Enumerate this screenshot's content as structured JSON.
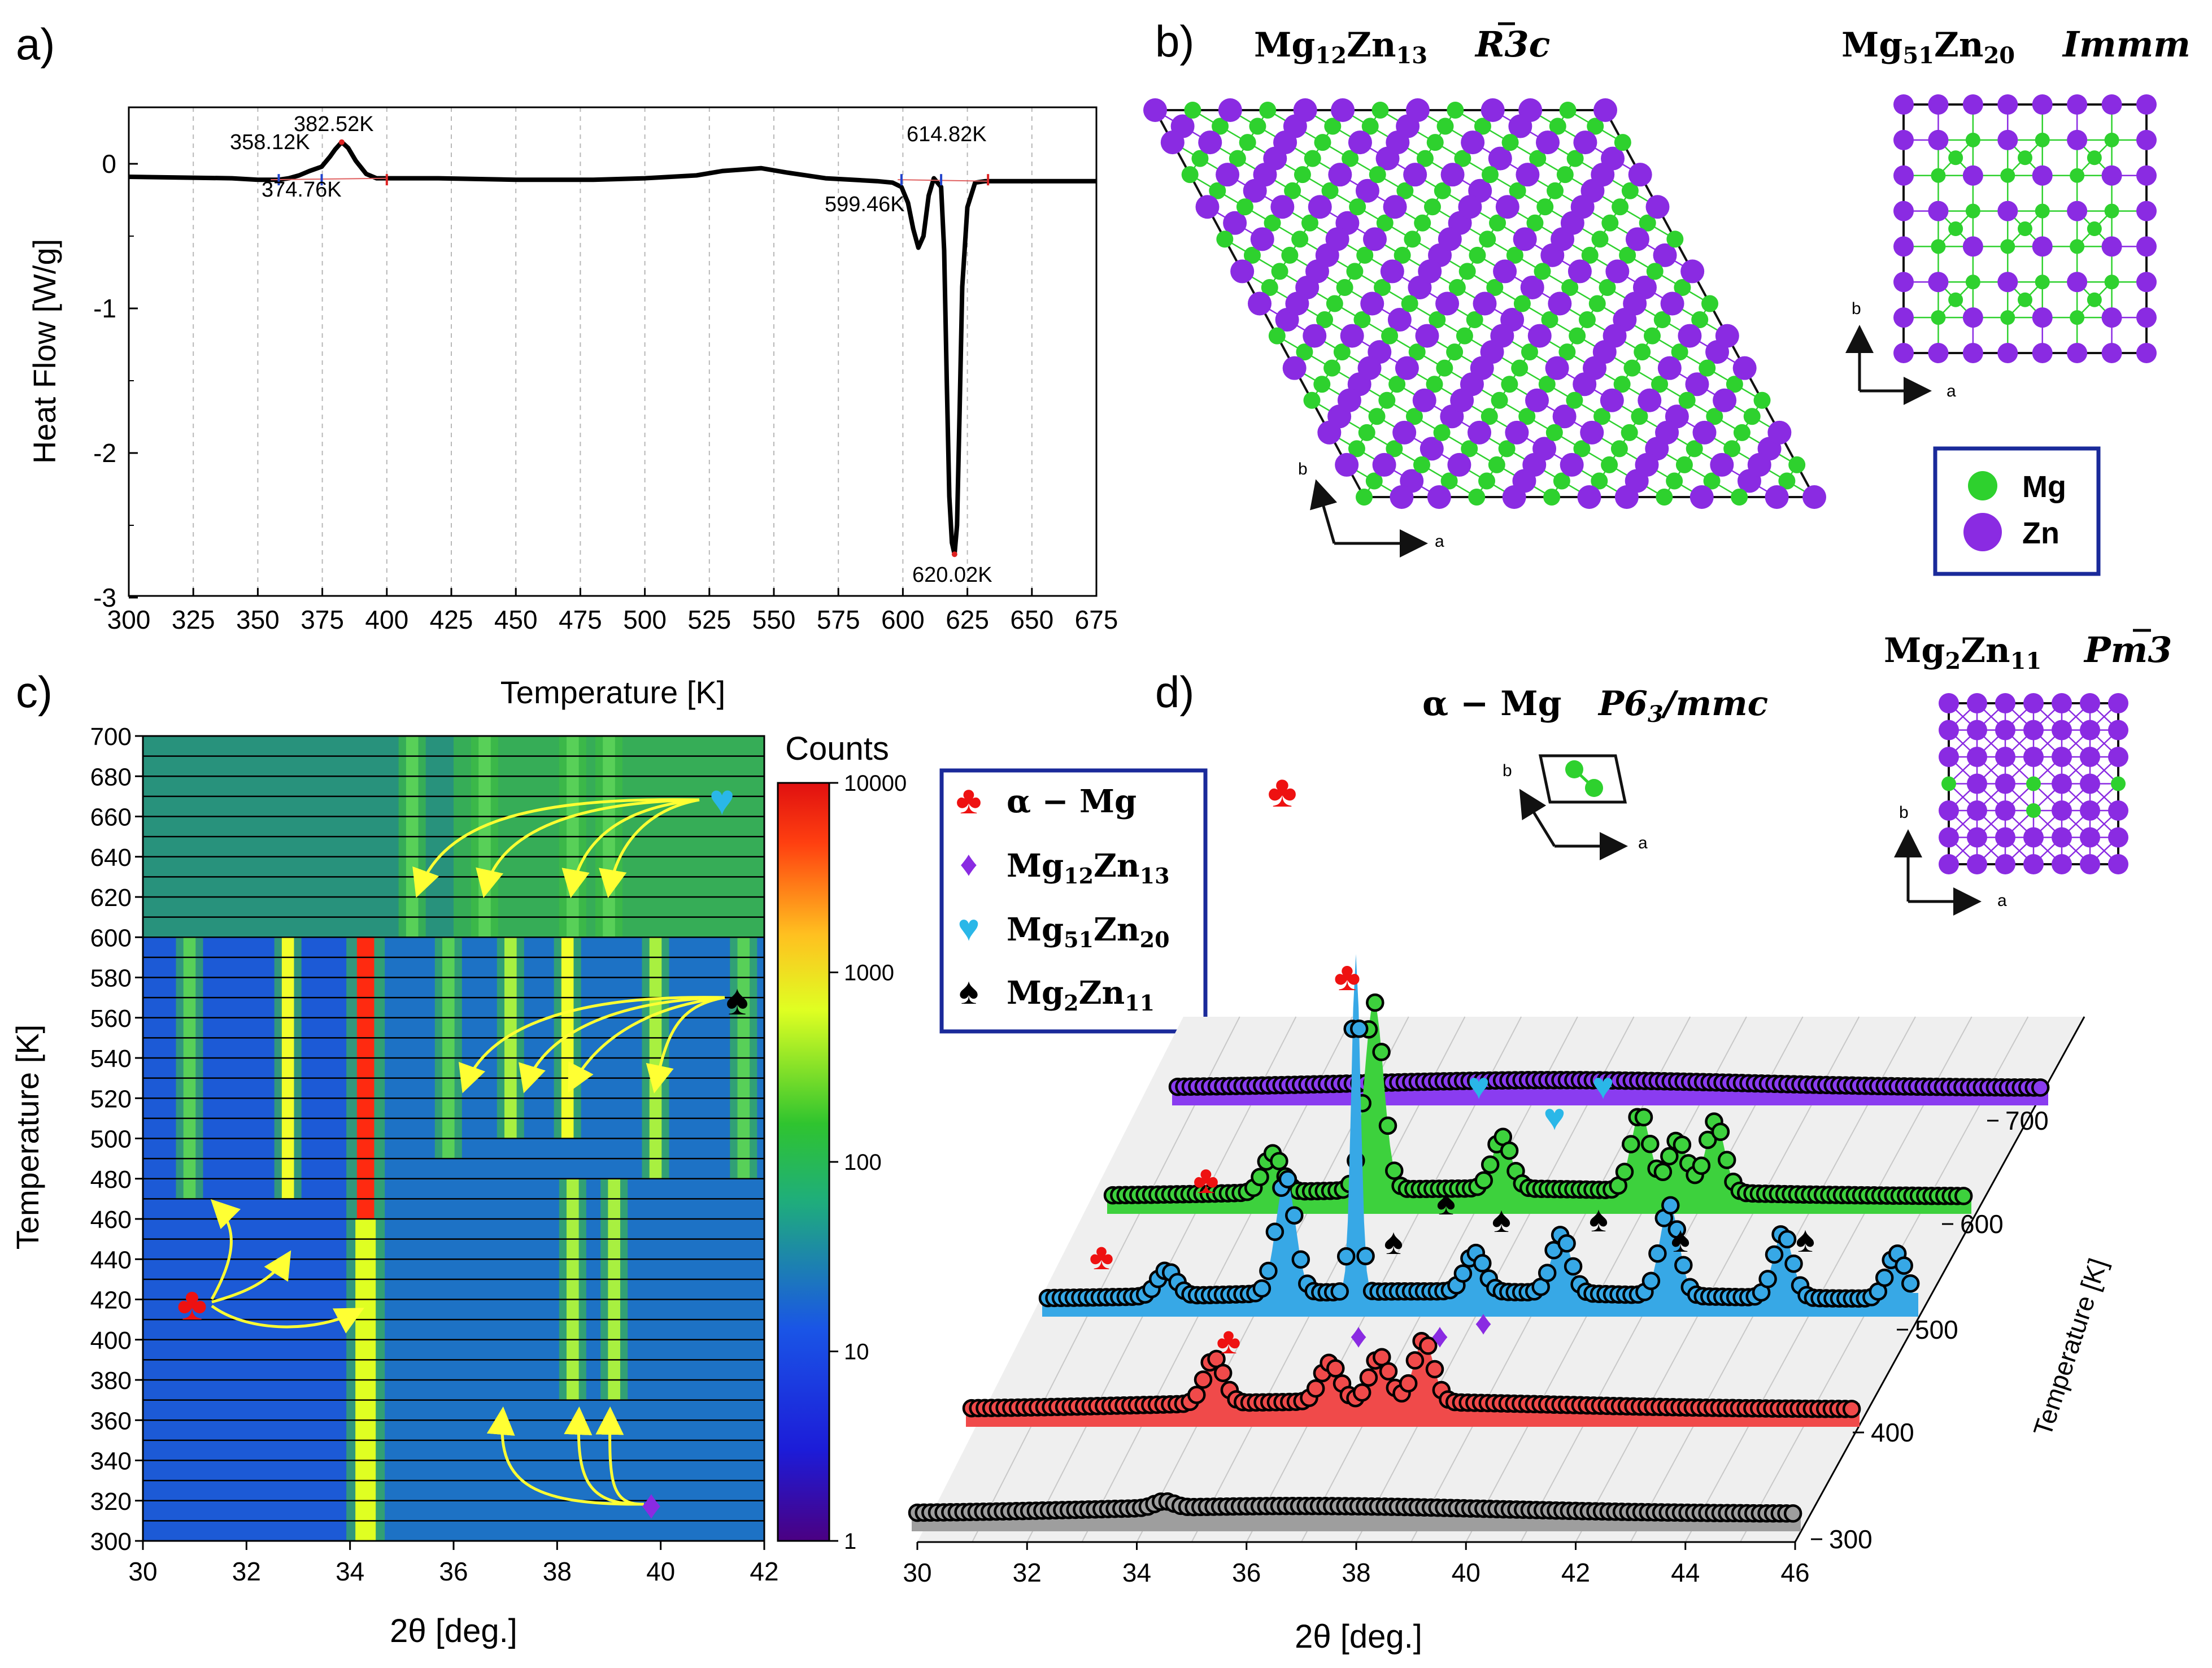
{
  "colors": {
    "mg": "#2ed12e",
    "zn": "#8a2be2",
    "club": "#ee1111",
    "diamond": "#8a2be2",
    "heart": "#2ab7e8",
    "spade": "#000000",
    "arrow": "#ffff33",
    "legend_border": "#1a2a9a"
  },
  "panel_a": {
    "label": "a)",
    "chart_data": {
      "type": "line",
      "xlabel": "Temperature [K]",
      "ylabel": "Heat Flow [W/g]",
      "xlim": [
        300,
        675
      ],
      "ylim": [
        -3,
        0.4
      ],
      "xticks": [
        "300",
        "325",
        "350",
        "375",
        "400",
        "425",
        "450",
        "475",
        "500",
        "525",
        "550",
        "575",
        "600",
        "625",
        "650",
        "675"
      ],
      "yticks": [
        "0",
        "-1",
        "-2",
        "-3"
      ],
      "grid": "vertical dashed",
      "x": [
        300,
        340,
        350,
        358.12,
        362,
        366,
        370,
        374.76,
        378,
        380,
        382.52,
        385,
        388,
        392,
        396,
        400,
        420,
        450,
        480,
        500,
        520,
        530,
        545,
        555,
        570,
        590,
        596,
        599.46,
        602,
        604,
        606,
        608,
        610,
        612,
        614.82,
        616,
        617,
        618,
        619,
        620.02,
        621,
        622,
        623,
        625,
        628,
        632,
        640,
        660,
        675
      ],
      "values": [
        -0.09,
        -0.1,
        -0.11,
        -0.11,
        -0.1,
        -0.08,
        -0.05,
        -0.02,
        0.05,
        0.1,
        0.15,
        0.11,
        0.02,
        -0.07,
        -0.1,
        -0.1,
        -0.1,
        -0.11,
        -0.11,
        -0.1,
        -0.08,
        -0.05,
        -0.03,
        -0.06,
        -0.1,
        -0.12,
        -0.13,
        -0.16,
        -0.27,
        -0.45,
        -0.58,
        -0.5,
        -0.22,
        -0.1,
        -0.16,
        -0.6,
        -1.5,
        -2.3,
        -2.62,
        -2.7,
        -2.5,
        -1.7,
        -0.85,
        -0.3,
        -0.13,
        -0.12,
        -0.12,
        -0.12,
        -0.12
      ],
      "annotations": [
        "358.12K",
        "374.76K",
        "382.52K",
        "599.46K",
        "614.82K",
        "620.02K"
      ]
    }
  },
  "panel_b": {
    "label": "b)",
    "structures": [
      {
        "name": "Mg12Zn13",
        "space_group": "R3c"
      },
      {
        "name": "Mg51Zn20",
        "space_group": "Immm"
      }
    ],
    "axes": {
      "a": "a",
      "b": "b"
    },
    "legend": [
      {
        "label": "Mg"
      },
      {
        "label": "Zn"
      }
    ]
  },
  "panel_c": {
    "label": "c)",
    "chart_data": {
      "type": "heatmap",
      "xlabel": "2θ [deg.]",
      "ylabel": "Temperature [K]",
      "xlim": [
        30,
        42
      ],
      "ylim": [
        300,
        700
      ],
      "xticks": [
        "30",
        "32",
        "34",
        "36",
        "38",
        "40",
        "42"
      ],
      "yticks": [
        "300",
        "320",
        "340",
        "360",
        "380",
        "400",
        "420",
        "440",
        "460",
        "480",
        "500",
        "520",
        "540",
        "560",
        "580",
        "600",
        "620",
        "640",
        "660",
        "680",
        "700"
      ],
      "colorbar_title": "Counts",
      "colorbar_ticks": [
        "1",
        "10",
        "100",
        "1000",
        "10000"
      ],
      "scale": "log",
      "streaks": [
        {
          "x": 30.9,
          "t_range": [
            470,
            600
          ],
          "intensity": 0.5
        },
        {
          "x": 32.8,
          "t_range": [
            470,
            600
          ],
          "intensity": 0.68
        },
        {
          "x": 34.3,
          "t_range": [
            300,
            600
          ],
          "intensity": 0.93
        },
        {
          "x": 35.9,
          "t_range": [
            490,
            600
          ],
          "intensity": 0.55
        },
        {
          "x": 37.1,
          "t_range": [
            500,
            600
          ],
          "intensity": 0.64
        },
        {
          "x": 38.2,
          "t_range": [
            500,
            600
          ],
          "intensity": 0.68
        },
        {
          "x": 39.9,
          "t_range": [
            480,
            600
          ],
          "intensity": 0.64
        },
        {
          "x": 41.6,
          "t_range": [
            480,
            600
          ],
          "intensity": 0.55
        },
        {
          "x": 38.3,
          "t_range": [
            370,
            480
          ],
          "intensity": 0.62
        },
        {
          "x": 39.1,
          "t_range": [
            370,
            480
          ],
          "intensity": 0.66
        },
        {
          "x": 35.2,
          "t_range": [
            600,
            700
          ],
          "intensity": 0.42
        },
        {
          "x": 36.6,
          "t_range": [
            600,
            700
          ],
          "intensity": 0.42
        },
        {
          "x": 38.3,
          "t_range": [
            600,
            700
          ],
          "intensity": 0.44
        },
        {
          "x": 39.0,
          "t_range": [
            600,
            700
          ],
          "intensity": 0.44
        }
      ]
    }
  },
  "legend_phases": [
    {
      "symbol": "♣",
      "label": "α − Mg"
    },
    {
      "symbol": "♦",
      "label": "Mg12Zn13"
    },
    {
      "symbol": "♥",
      "label": "Mg51Zn20"
    },
    {
      "symbol": "♠",
      "label": "Mg2Zn11"
    }
  ],
  "panel_d": {
    "label": "d)",
    "phase_titles": [
      {
        "name": "α − Mg",
        "space_group": "P63/mmc"
      },
      {
        "name": "Mg2Zn11",
        "space_group": "Pm3"
      }
    ],
    "chart_data": {
      "type": "line",
      "xlabel": "2θ [deg.]",
      "zlabel": "Temperature [K]",
      "xlim": [
        30,
        46
      ],
      "xticks": [
        "30",
        "32",
        "34",
        "36",
        "38",
        "40",
        "42",
        "44",
        "46"
      ],
      "zticks": [
        "300",
        "400",
        "500",
        "600",
        "700"
      ],
      "series": [
        {
          "name": "300 K",
          "color": "#9e9e9e",
          "peaks": [
            [
              34.5,
              0.05
            ]
          ]
        },
        {
          "name": "400 K",
          "color": "#f04a4a",
          "peaks": [
            [
              34.4,
              0.35
            ],
            [
              36.5,
              0.3
            ],
            [
              37.4,
              0.35
            ],
            [
              38.2,
              0.48
            ]
          ]
        },
        {
          "name": "500 K",
          "color": "#37a8e6",
          "peaks": [
            [
              32.2,
              0.2
            ],
            [
              34.4,
              0.9
            ],
            [
              35.7,
              2.6
            ],
            [
              37.9,
              0.3
            ],
            [
              39.5,
              0.45
            ],
            [
              41.5,
              0.7
            ],
            [
              43.6,
              0.5
            ],
            [
              45.7,
              0.35
            ]
          ]
        },
        {
          "name": "600 K",
          "color": "#3dd13d",
          "peaks": [
            [
              33.0,
              0.3
            ],
            [
              34.9,
              1.45
            ],
            [
              37.3,
              0.4
            ],
            [
              39.9,
              0.6
            ],
            [
              40.6,
              0.4
            ],
            [
              41.3,
              0.55
            ]
          ]
        },
        {
          "name": "700 K",
          "color": "#8a3cf0",
          "peaks": []
        }
      ]
    }
  }
}
